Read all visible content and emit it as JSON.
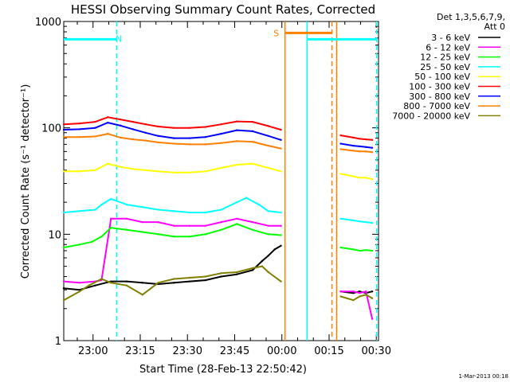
{
  "chart_data": {
    "type": "line",
    "title": "HESSI Observing Summary Count Rates, Corrected",
    "xlabel": "Start Time (28-Feb-13 22:50:42)",
    "ylabel": "Corrected Count Rate (s⁻¹ detector⁻¹)",
    "x_unit": "minutes after 22:50:42",
    "xlim": [
      0,
      100
    ],
    "ylim": [
      1,
      1000
    ],
    "y_scale": "log",
    "x_ticks": [
      {
        "label": "23:00",
        "x": 9.3
      },
      {
        "label": "23:15",
        "x": 24.3
      },
      {
        "label": "23:30",
        "x": 39.3
      },
      {
        "label": "23:45",
        "x": 54.3
      },
      {
        "label": "00:00",
        "x": 69.3
      },
      {
        "label": "00:15",
        "x": 84.3
      },
      {
        "label": "00:30",
        "x": 99.3
      }
    ],
    "y_ticks": [
      {
        "label": "1",
        "y": 1
      },
      {
        "label": "10",
        "y": 10
      },
      {
        "label": "100",
        "y": 100
      },
      {
        "label": "1000",
        "y": 1000
      }
    ],
    "legend_header": [
      "Det 1,3,5,6,7,9,",
      "Att 0"
    ],
    "legend_position": "right",
    "series": [
      {
        "name": "3 - 6 keV",
        "color": "#000000",
        "x": [
          0,
          5,
          10,
          15,
          20,
          25,
          30,
          35,
          40,
          45,
          50,
          55,
          60,
          63,
          65,
          67,
          69,
          86,
          88,
          92,
          94,
          96,
          98
        ],
        "y": [
          3.1,
          3,
          3.3,
          3.6,
          3.6,
          3.5,
          3.4,
          3.5,
          3.6,
          3.7,
          4,
          4.2,
          4.6,
          5.6,
          6.3,
          7.2,
          7.8,
          null,
          2.9,
          2.8,
          2.9,
          2.8,
          2.9
        ]
      },
      {
        "name": "6 - 12 keV",
        "color": "#ff00ff",
        "x": [
          0,
          5,
          10,
          12,
          15,
          20,
          25,
          30,
          35,
          40,
          45,
          50,
          55,
          60,
          65,
          69,
          86,
          88,
          92,
          94,
          96,
          98
        ],
        "y": [
          3.6,
          3.5,
          3.6,
          3.7,
          14,
          14,
          13,
          13,
          12,
          12,
          12,
          13,
          14,
          13,
          12,
          12,
          null,
          2.9,
          2.9,
          2.8,
          2.9,
          1.6
        ]
      },
      {
        "name": "12 - 25 keV",
        "color": "#00ff00",
        "x": [
          0,
          5,
          9,
          12,
          15,
          20,
          25,
          30,
          35,
          40,
          45,
          50,
          55,
          60,
          65,
          69,
          86,
          88,
          92,
          94,
          96,
          98
        ],
        "y": [
          7.5,
          8,
          8.5,
          9.5,
          11.5,
          11,
          10.5,
          10,
          9.5,
          9.5,
          10,
          11,
          12.5,
          11,
          10,
          9.8,
          null,
          7.5,
          7.2,
          7,
          7.1,
          7
        ]
      },
      {
        "name": "25 - 50 keV",
        "color": "#00ffff",
        "x": [
          0,
          5,
          10,
          12,
          15,
          20,
          25,
          30,
          35,
          40,
          45,
          50,
          55,
          58,
          62,
          65,
          69,
          86,
          88,
          92,
          94,
          96,
          98
        ],
        "y": [
          16,
          16.5,
          17,
          19,
          21.5,
          19,
          18,
          17,
          16.5,
          16,
          16,
          17,
          20,
          22,
          19,
          16.5,
          16,
          null,
          14,
          13.5,
          13.2,
          13,
          12.8
        ]
      },
      {
        "name": "50 - 100 keV",
        "color": "#ffff00",
        "x": [
          0,
          5,
          10,
          14,
          18,
          22,
          26,
          30,
          35,
          40,
          45,
          50,
          55,
          60,
          65,
          69,
          86,
          88,
          92,
          94,
          96,
          98
        ],
        "y": [
          39,
          39,
          40,
          46,
          43,
          41,
          40,
          39,
          38,
          38,
          39,
          42,
          45,
          46,
          42,
          39,
          null,
          37,
          35,
          34,
          34,
          33
        ]
      },
      {
        "name": "100 - 300 keV",
        "color": "#ff0000",
        "x": [
          0,
          5,
          10,
          14,
          18,
          22,
          26,
          30,
          35,
          40,
          45,
          50,
          55,
          60,
          65,
          69,
          86,
          88,
          92,
          94,
          96,
          98
        ],
        "y": [
          108,
          110,
          114,
          126,
          120,
          114,
          108,
          103,
          100,
          100,
          102,
          108,
          115,
          114,
          104,
          96,
          null,
          85,
          81,
          79,
          78,
          77
        ]
      },
      {
        "name": "300 - 800 keV",
        "color": "#0000ff",
        "x": [
          0,
          5,
          10,
          14,
          18,
          22,
          26,
          30,
          35,
          40,
          45,
          50,
          55,
          60,
          65,
          69,
          86,
          88,
          92,
          94,
          96,
          98
        ],
        "y": [
          96,
          97,
          100,
          112,
          105,
          97,
          90,
          84,
          80,
          80,
          82,
          88,
          95,
          93,
          84,
          77,
          null,
          71,
          68,
          67,
          66,
          65
        ]
      },
      {
        "name": "800 - 7000 keV",
        "color": "#ff8000",
        "x": [
          0,
          5,
          10,
          14,
          18,
          22,
          26,
          30,
          35,
          40,
          45,
          50,
          55,
          60,
          65,
          69,
          86,
          88,
          92,
          94,
          96,
          98
        ],
        "y": [
          82,
          82,
          83,
          88,
          81,
          78,
          76,
          73,
          71,
          70,
          70,
          72,
          75,
          74,
          68,
          64,
          null,
          63,
          61,
          60,
          60,
          59
        ]
      },
      {
        "name": "7000 - 20000 keV",
        "color": "#808000",
        "x": [
          0,
          5,
          8,
          12,
          15,
          20,
          25,
          30,
          35,
          40,
          45,
          50,
          55,
          60,
          63,
          65,
          69,
          86,
          88,
          92,
          94,
          96,
          98
        ],
        "y": [
          2.4,
          2.9,
          3.3,
          3.8,
          3.5,
          3.3,
          2.7,
          3.5,
          3.8,
          3.9,
          4,
          4.3,
          4.4,
          4.8,
          5,
          4.4,
          3.6,
          null,
          2.6,
          2.4,
          2.6,
          2.7,
          2.5
        ]
      }
    ],
    "annotations": [
      {
        "text": "N",
        "color": "#00ffff",
        "x": 17.5,
        "y": 700
      },
      {
        "text": "S",
        "color": "#ff8000",
        "x": 67.5,
        "y": 790
      }
    ],
    "flag_bars": [
      {
        "color": "#00ffff",
        "x0": 0,
        "x1": 16.8,
        "y": 680
      },
      {
        "color": "#ff8000",
        "x0": 70.5,
        "x1": 85.2,
        "y": 780
      },
      {
        "color": "#00ffff",
        "x0": 77.5,
        "x1": 99.4,
        "y": 680
      }
    ],
    "vlines": [
      {
        "x": 16.8,
        "color": "#00ffff",
        "dashed": true
      },
      {
        "x": 70.3,
        "color": "#ff8000",
        "dashed": false
      },
      {
        "x": 77.3,
        "color": "#00ffff",
        "dashed": false
      },
      {
        "x": 85.2,
        "color": "#ff8000",
        "dashed": true
      },
      {
        "x": 86.7,
        "color": "#ff8000",
        "dashed": false
      },
      {
        "x": 99.4,
        "color": "#00ffff",
        "dashed": true
      }
    ]
  },
  "footer_timestamp": "1-Mar-2013 00:18"
}
